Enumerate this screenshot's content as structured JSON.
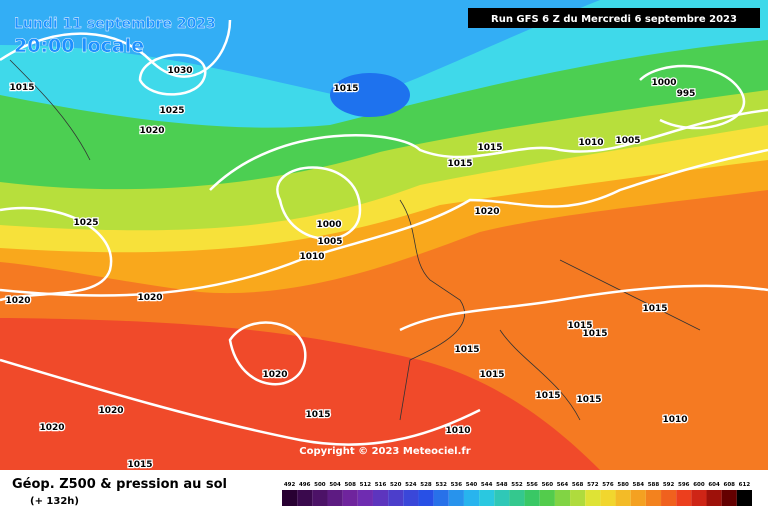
{
  "header": {
    "date": "Lundi 11 septembre 2023",
    "time": "20:00 locale",
    "run": "Run GFS 6 Z du Mercredi 6 septembre 2023"
  },
  "isobar_labels": [
    1015,
    1030,
    1025,
    1020,
    1015,
    1000,
    995,
    1010,
    1005,
    1015,
    1015,
    1020,
    1000,
    1005,
    1010,
    1025,
    1020,
    1020,
    1015,
    1015,
    1015,
    1015,
    1020,
    1015,
    1015,
    1015,
    1010,
    1020,
    1015,
    1020,
    1010,
    1015
  ],
  "copyright": "Copyright © 2023 Meteociel.fr",
  "legend": {
    "title": "Géop. Z500 & pression au sol",
    "lead": "(+ 132h)",
    "scale": [
      492,
      496,
      500,
      504,
      508,
      512,
      516,
      520,
      524,
      528,
      532,
      536,
      540,
      544,
      548,
      552,
      556,
      560,
      564,
      568,
      572,
      576,
      580,
      584,
      588,
      592,
      596,
      600,
      604,
      608,
      612
    ]
  }
}
